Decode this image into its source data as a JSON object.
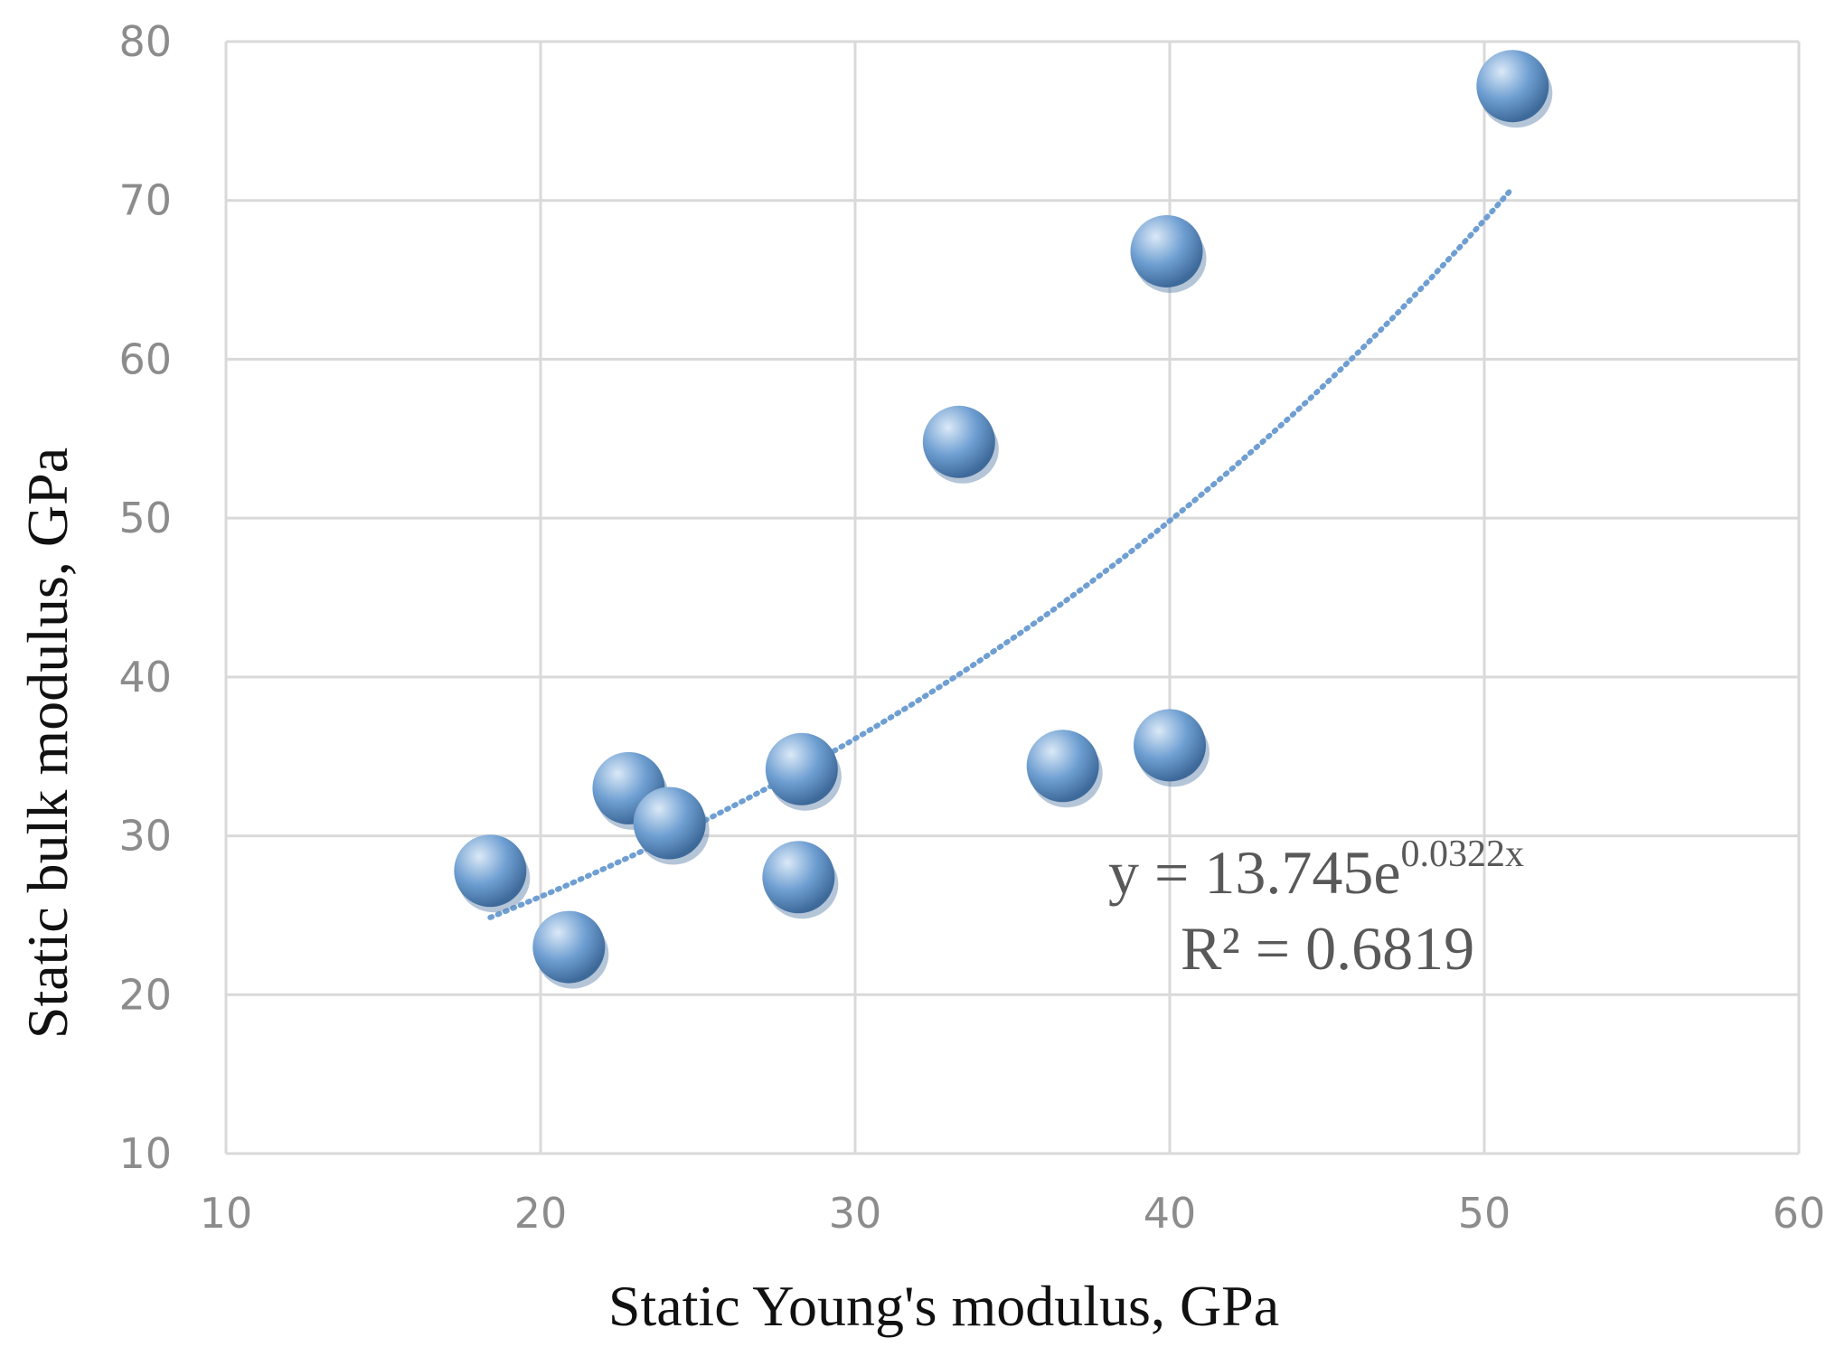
{
  "chart_data": {
    "type": "scatter",
    "xlabel": "Static Young's modulus, GPa",
    "ylabel": "Static bulk modulus, GPa",
    "xlim": [
      10,
      60
    ],
    "ylim": [
      10,
      80
    ],
    "x_ticks": [
      "10",
      "20",
      "30",
      "40",
      "50",
      "60"
    ],
    "y_ticks": [
      "10",
      "20",
      "30",
      "40",
      "50",
      "60",
      "70",
      "80"
    ],
    "grid": true,
    "points": [
      {
        "x": 18.4,
        "y": 27.8
      },
      {
        "x": 20.9,
        "y": 23.0
      },
      {
        "x": 22.8,
        "y": 33.0
      },
      {
        "x": 24.1,
        "y": 30.8
      },
      {
        "x": 28.2,
        "y": 27.4
      },
      {
        "x": 28.3,
        "y": 34.2
      },
      {
        "x": 33.3,
        "y": 54.8
      },
      {
        "x": 36.6,
        "y": 34.4
      },
      {
        "x": 40.0,
        "y": 35.7
      },
      {
        "x": 39.9,
        "y": 66.8
      },
      {
        "x": 50.9,
        "y": 77.2
      }
    ],
    "trendline": {
      "type": "exponential",
      "a": 13.745,
      "b": 0.0322,
      "x_range": [
        18.4,
        50.9
      ],
      "equation_main": "y = 13.745e",
      "equation_exp": "0.0322x",
      "r2_label": "R² = 0.6819"
    },
    "colors": {
      "marker": "#6f9fd2",
      "marker_highlight": "#dbe9f7",
      "marker_shadow": "#3e6a9a",
      "trendline": "#6f9fd2",
      "grid": "#d9d9d9"
    }
  }
}
